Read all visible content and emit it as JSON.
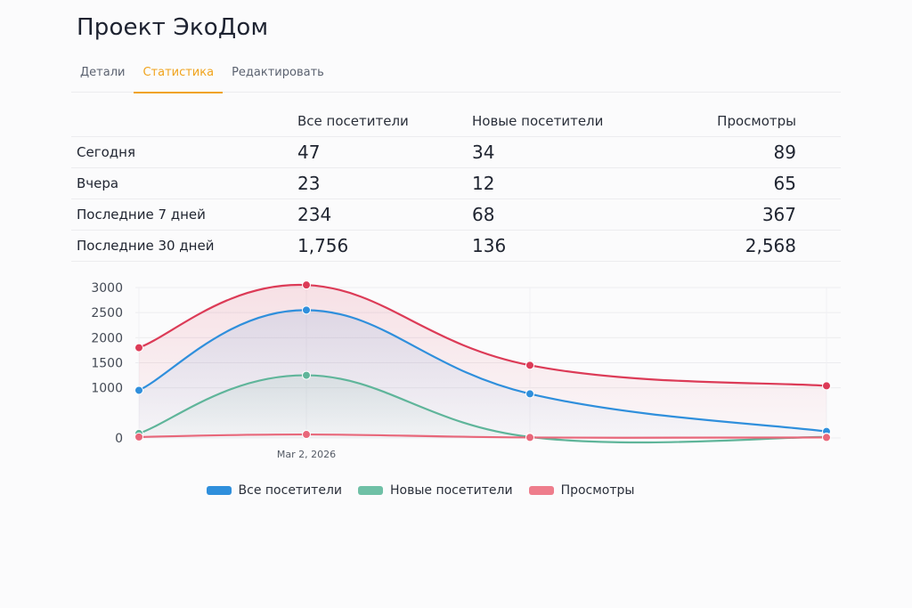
{
  "title": "Проект ЭкоДом",
  "tabs": [
    {
      "label": "Детали"
    },
    {
      "label": "Статистика"
    },
    {
      "label": "Редактировать"
    }
  ],
  "stats": {
    "columns": [
      "Все посетители",
      "Новые посетители",
      "Просмотры"
    ],
    "rows": [
      {
        "label": "Сегодня",
        "all": "47",
        "new": "34",
        "views": "89"
      },
      {
        "label": "Вчера",
        "all": "23",
        "new": "12",
        "views": "65"
      },
      {
        "label": "Последние 7 дней",
        "all": "234",
        "new": "68",
        "views": "367"
      },
      {
        "label": "Последние 30 дней",
        "all": "1,756",
        "new": "136",
        "views": "2,568"
      }
    ]
  },
  "colors": {
    "accent": "#f0a31c",
    "all": "#2f8fdc",
    "new": "#5fb59a",
    "views": "#dc3b57",
    "views_low": "#e8677a"
  },
  "chart_data": {
    "type": "line",
    "x": [
      0,
      1,
      2,
      3
    ],
    "x_tick_labels": [
      "",
      "Mar 2, 2026",
      "",
      ""
    ],
    "ylim": [
      0,
      3000
    ],
    "y_ticks": [
      0,
      1000,
      1500,
      2000,
      2500,
      3000
    ],
    "grid": true,
    "legend_position": "bottom",
    "series": [
      {
        "name": "Все посетители",
        "color": "#2f8fdc",
        "values": [
          950,
          2550,
          880,
          130
        ],
        "fill": true
      },
      {
        "name": "Новые посетители",
        "color": "#5fb59a",
        "values": [
          90,
          1250,
          20,
          20
        ],
        "fill": true
      },
      {
        "name": "Просмотры",
        "color": "#dc3b57",
        "values": [
          1800,
          3050,
          1450,
          1040
        ],
        "fill": true
      },
      {
        "name": "",
        "color": "#e8677a",
        "values": [
          20,
          70,
          10,
          10
        ],
        "fill": false
      }
    ]
  },
  "legend": [
    {
      "label": "Все посетители",
      "color": "#2f8fdc"
    },
    {
      "label": "Новые посетители",
      "color": "#5fb59a"
    },
    {
      "label": "Просмотры",
      "color": "#e8677a"
    }
  ]
}
